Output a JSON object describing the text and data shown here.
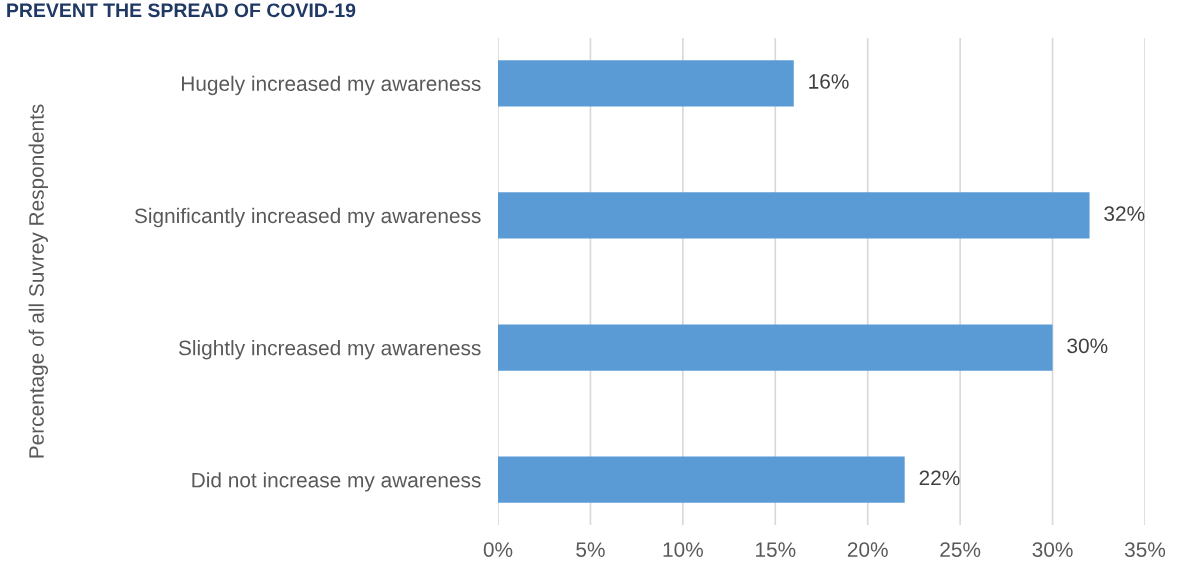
{
  "chart_data": {
    "type": "bar",
    "orientation": "horizontal",
    "title": "PREVENT THE SPREAD OF COVID-19",
    "ylabel": "Percentage of all Suvrey Respondents",
    "categories": [
      "Hugely increased my awareness",
      "Significantly increased my awareness",
      "Slightly increased my awareness",
      "Did not increase my awareness"
    ],
    "values": [
      16,
      32,
      30,
      22
    ],
    "color": "#5b9bd5",
    "data_labels": true,
    "value_labels": [
      "16%",
      "32%",
      "30%",
      "22%"
    ],
    "xlim": [
      0,
      35
    ],
    "xticks": [
      {
        "value": 0,
        "label": "0%"
      },
      {
        "value": 5,
        "label": "5%"
      },
      {
        "value": 10,
        "label": "10%"
      },
      {
        "value": 15,
        "label": "15%"
      },
      {
        "value": 20,
        "label": "20%"
      },
      {
        "value": 25,
        "label": "25%"
      },
      {
        "value": 30,
        "label": "30%"
      },
      {
        "value": 35,
        "label": "35%"
      }
    ],
    "grid": "x",
    "legend": false
  }
}
